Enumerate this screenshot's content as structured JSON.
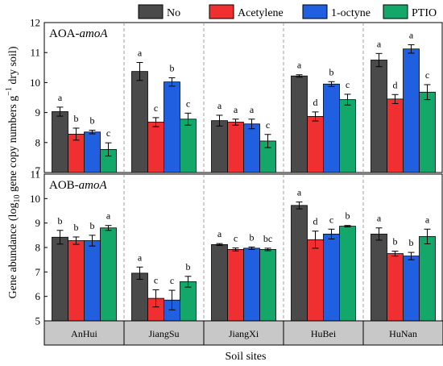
{
  "legend": [
    {
      "name": "No",
      "color": "#4a4a4a"
    },
    {
      "name": "Acetylene",
      "color": "#f03030"
    },
    {
      "name": "1-octyne",
      "color": "#1f5fe0"
    },
    {
      "name": "PTIO",
      "color": "#13a86a"
    }
  ],
  "ylabel_main": "Gene abundance (log",
  "ylabel_sub": "10",
  "ylabel_rest": " gene copy numbers g",
  "ylabel_sup": "−1",
  "ylabel_end": " dry soil)",
  "xlabel": "Soil sites",
  "chart_data": [
    {
      "type": "bar",
      "title_prefix": "AOA-",
      "title_italic": "amoA",
      "categories": [
        "AnHui",
        "JiangSu",
        "JiangXi",
        "HuBei",
        "HuNan"
      ],
      "ylim": [
        7,
        12
      ],
      "yticks": [
        "7",
        "8",
        "9",
        "10",
        "11",
        "12"
      ],
      "series": [
        {
          "name": "No",
          "values": [
            9.03,
            10.37,
            8.73,
            10.22,
            10.75
          ],
          "errors": [
            0.15,
            0.3,
            0.18,
            0.04,
            0.22
          ],
          "letters": [
            "a",
            "a",
            "a",
            "a",
            "a"
          ]
        },
        {
          "name": "Acetylene",
          "values": [
            8.28,
            8.68,
            8.68,
            8.87,
            9.45
          ],
          "errors": [
            0.2,
            0.15,
            0.1,
            0.15,
            0.15
          ],
          "letters": [
            "b",
            "c",
            "a",
            "d",
            "d"
          ]
        },
        {
          "name": "1-octyne",
          "values": [
            8.35,
            10.02,
            8.62,
            9.95,
            11.12
          ],
          "errors": [
            0.06,
            0.14,
            0.16,
            0.08,
            0.14
          ],
          "letters": [
            "b",
            "b",
            "a",
            "b",
            "a"
          ]
        },
        {
          "name": "PTIO",
          "values": [
            7.77,
            8.78,
            8.05,
            9.43,
            9.68
          ],
          "errors": [
            0.22,
            0.2,
            0.22,
            0.18,
            0.25
          ],
          "letters": [
            "c",
            "c",
            "c",
            "c",
            "c"
          ]
        }
      ]
    },
    {
      "type": "bar",
      "title_prefix": "AOB-",
      "title_italic": "amoA",
      "categories": [
        "AnHui",
        "JiangSu",
        "JiangXi",
        "HuBei",
        "HuNan"
      ],
      "ylim": [
        5,
        11
      ],
      "yticks": [
        "5",
        "6",
        "7",
        "8",
        "9",
        "10",
        "11"
      ],
      "series": [
        {
          "name": "No",
          "values": [
            8.42,
            6.95,
            8.12,
            9.72,
            8.55
          ],
          "errors": [
            0.28,
            0.25,
            0.04,
            0.14,
            0.25
          ],
          "letters": [
            "b",
            "a",
            "a",
            "a",
            "a"
          ]
        },
        {
          "name": "Acetylene",
          "values": [
            8.28,
            5.92,
            7.92,
            8.32,
            7.75
          ],
          "errors": [
            0.15,
            0.35,
            0.06,
            0.35,
            0.1
          ],
          "letters": [
            "b",
            "c",
            "c",
            "d",
            "b"
          ]
        },
        {
          "name": "1-octyne",
          "values": [
            8.28,
            5.85,
            7.97,
            8.55,
            7.65
          ],
          "errors": [
            0.22,
            0.4,
            0.05,
            0.2,
            0.15
          ],
          "letters": [
            "b",
            "c",
            "b",
            "c",
            "b"
          ]
        },
        {
          "name": "PTIO",
          "values": [
            8.8,
            6.6,
            7.92,
            8.87,
            8.45
          ],
          "errors": [
            0.1,
            0.22,
            0.05,
            0.03,
            0.3
          ],
          "letters": [
            "a",
            "b",
            "bc",
            "b",
            "a"
          ]
        }
      ]
    }
  ]
}
